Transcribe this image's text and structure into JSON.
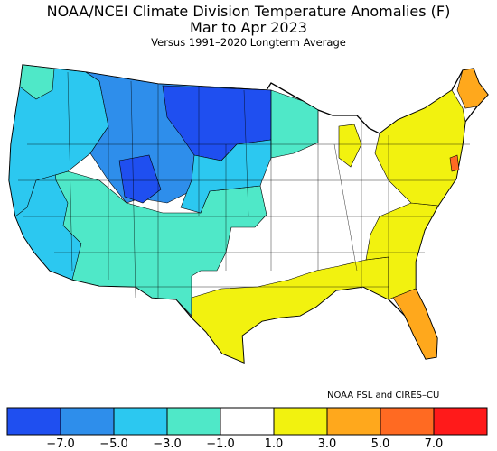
{
  "header": {
    "title": "NOAA/NCEI Climate Division Temperature Anomalies (F)",
    "period": "Mar to Apr 2023",
    "baseline": "Versus 1991–2020 Longterm Average"
  },
  "credit": "NOAA PSL and CIRES–CU",
  "legend": {
    "bins": [
      {
        "color": "#1F4FF0",
        "range": "< -7.0"
      },
      {
        "color": "#2E8EEB",
        "range": "-7.0 to -5.0"
      },
      {
        "color": "#2CC8F0",
        "range": "-5.0 to -3.0"
      },
      {
        "color": "#4FE8C8",
        "range": "-3.0 to -1.0"
      },
      {
        "color": "#FFFFFF",
        "range": "-1.0 to 1.0"
      },
      {
        "color": "#F2F20F",
        "range": "1.0 to 3.0"
      },
      {
        "color": "#FFA81C",
        "range": "3.0 to 5.0"
      },
      {
        "color": "#FF6A22",
        "range": "5.0 to 7.0"
      },
      {
        "color": "#FF1A1A",
        "range": "> 7.0"
      }
    ],
    "tick_labels": [
      "−7.0",
      "−5.0",
      "−3.0",
      "−1.0",
      "1.0",
      "3.0",
      "5.0",
      "7.0"
    ]
  },
  "regions": [
    {
      "name": "pacific-northwest",
      "color": "#2CC8F0"
    },
    {
      "name": "northern-rockies",
      "color": "#2E8EEB"
    },
    {
      "name": "northern-plains",
      "color": "#1F4FF0"
    },
    {
      "name": "wyoming-colorado",
      "color": "#2E8EEB"
    },
    {
      "name": "california",
      "color": "#2CC8F0"
    },
    {
      "name": "southwest",
      "color": "#4FE8C8"
    },
    {
      "name": "central-plains",
      "color": "#2CC8F0"
    },
    {
      "name": "upper-midwest",
      "color": "#4FE8C8"
    },
    {
      "name": "midwest-south",
      "color": "#FFFFFF"
    },
    {
      "name": "texas-gulf",
      "color": "#F2F20F"
    },
    {
      "name": "southeast",
      "color": "#F2F20F"
    },
    {
      "name": "northeast",
      "color": "#F2F20F"
    },
    {
      "name": "michigan",
      "color": "#F2F20F"
    },
    {
      "name": "maine",
      "color": "#FFA81C"
    },
    {
      "name": "florida",
      "color": "#FFA81C"
    }
  ]
}
